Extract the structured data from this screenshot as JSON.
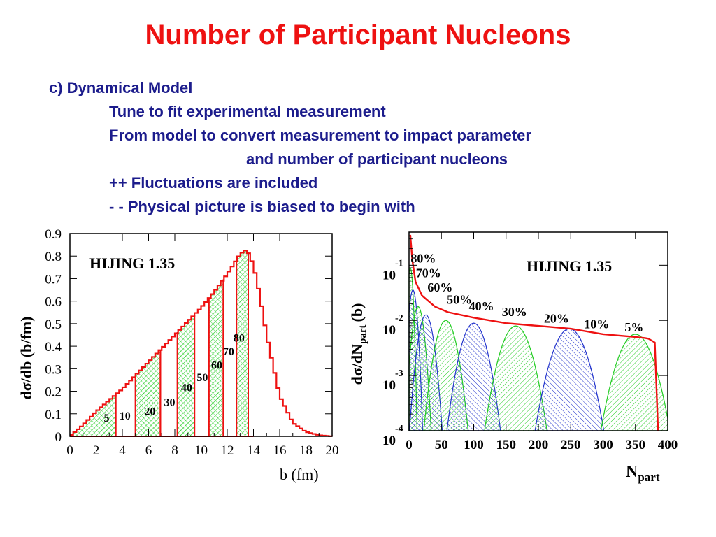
{
  "slide": {
    "title": "Number of Participant Nucleons",
    "lines": [
      "c) Dynamical Model",
      "Tune to fit experimental  measurement",
      "From model to convert measurement to impact parameter",
      "and number of participant nucleons",
      "++ Fluctuations are included",
      "- -  Physical picture is biased to begin with"
    ]
  },
  "colors": {
    "title": "#ee1111",
    "text": "#1c1c8c",
    "histogram": "#ee1111",
    "hatch_green": "#22cc22",
    "hatch_blue": "#2233cc"
  },
  "chart_data": [
    {
      "type": "area",
      "annotation": "HIJING 1.35",
      "xlabel": "b (fm)",
      "ylabel": "dσ/db (b/fm)",
      "xlim": [
        0,
        20
      ],
      "ylim": [
        0,
        0.9
      ],
      "xticks": [
        "0",
        "2",
        "4",
        "6",
        "8",
        "10",
        "12",
        "14",
        "16",
        "18",
        "20"
      ],
      "yticks": [
        "0",
        "0.1",
        "0.2",
        "0.3",
        "0.4",
        "0.5",
        "0.6",
        "0.7",
        "0.8",
        "0.9"
      ],
      "x": [
        0,
        1,
        2,
        3,
        4,
        5,
        6,
        7,
        8,
        9,
        10,
        11,
        12,
        13,
        13.5,
        14,
        14.5,
        15,
        16,
        17,
        18,
        19,
        20
      ],
      "y": [
        0,
        0.05,
        0.11,
        0.16,
        0.21,
        0.27,
        0.33,
        0.39,
        0.45,
        0.51,
        0.57,
        0.64,
        0.72,
        0.81,
        0.83,
        0.76,
        0.62,
        0.45,
        0.18,
        0.06,
        0.02,
        0.005,
        0
      ],
      "bands": [
        {
          "label": "5",
          "x": [
            0,
            3.5
          ]
        },
        {
          "label": "10",
          "x": [
            3.5,
            5
          ]
        },
        {
          "label": "20",
          "x": [
            5,
            6.9
          ]
        },
        {
          "label": "30",
          "x": [
            6.9,
            8.2
          ]
        },
        {
          "label": "40",
          "x": [
            8.2,
            9.5
          ]
        },
        {
          "label": "50",
          "x": [
            9.5,
            10.6
          ]
        },
        {
          "label": "60",
          "x": [
            10.6,
            11.7
          ]
        },
        {
          "label": "70",
          "x": [
            11.7,
            12.7
          ]
        },
        {
          "label": "80",
          "x": [
            12.7,
            13.6
          ]
        }
      ],
      "band_labels": [
        {
          "text": "5",
          "x": 2.8,
          "y": 0.065
        },
        {
          "text": "10",
          "x": 4.2,
          "y": 0.075
        },
        {
          "text": "20",
          "x": 6.1,
          "y": 0.095
        },
        {
          "text": "30",
          "x": 7.6,
          "y": 0.135
        },
        {
          "text": "40",
          "x": 8.9,
          "y": 0.2
        },
        {
          "text": "50",
          "x": 10.1,
          "y": 0.245
        },
        {
          "text": "60",
          "x": 11.2,
          "y": 0.3
        },
        {
          "text": "70",
          "x": 12.1,
          "y": 0.36
        },
        {
          "text": "80",
          "x": 12.9,
          "y": 0.42
        }
      ]
    },
    {
      "type": "area",
      "annotation": "HIJING 1.35",
      "xlabel": "N",
      "xlabel_sub": "part",
      "ylabel": "dσ/dN",
      "ylabel_sub": "part",
      "ylabel_unit": "(b)",
      "xlim": [
        0,
        400
      ],
      "ylim_log10": [
        -4,
        -0.4
      ],
      "log_scale_y": true,
      "xticks": [
        "0",
        "50",
        "100",
        "150",
        "200",
        "250",
        "300",
        "350",
        "400"
      ],
      "yticks": [
        {
          "base": "10",
          "exp": "-1",
          "value": -1
        },
        {
          "base": "10",
          "exp": "-2",
          "value": -2
        },
        {
          "base": "10",
          "exp": "-3",
          "value": -3
        },
        {
          "base": "10",
          "exp": "-4",
          "value": -4
        }
      ],
      "total": {
        "x": [
          2,
          5,
          10,
          20,
          40,
          60,
          100,
          150,
          200,
          250,
          300,
          330,
          350,
          365,
          370,
          380,
          385
        ],
        "log10_y": [
          -0.45,
          -0.9,
          -1.3,
          -1.55,
          -1.75,
          -1.85,
          -1.95,
          -2.05,
          -2.1,
          -2.15,
          -2.25,
          -2.28,
          -2.3,
          -2.32,
          -2.33,
          -2.4,
          -4.0
        ]
      },
      "slices": [
        {
          "label": "80%",
          "center": 2,
          "width": 9,
          "log10_peak": -1.05,
          "color": "green"
        },
        {
          "label": "70%",
          "center": 6,
          "width": 14,
          "log10_peak": -1.45,
          "color": "blue"
        },
        {
          "label": "60%",
          "center": 14,
          "width": 20,
          "log10_peak": -1.75,
          "color": "green"
        },
        {
          "label": "50%",
          "center": 26,
          "width": 26,
          "log10_peak": -1.9,
          "color": "blue"
        },
        {
          "label": "40%",
          "center": 57,
          "width": 36,
          "log10_peak": -2.0,
          "color": "green"
        },
        {
          "label": "30%",
          "center": 100,
          "width": 44,
          "log10_peak": -2.05,
          "color": "blue"
        },
        {
          "label": "20%",
          "center": 165,
          "width": 52,
          "log10_peak": -2.1,
          "color": "green"
        },
        {
          "label": "10%",
          "center": 248,
          "width": 58,
          "log10_peak": -2.15,
          "color": "blue"
        },
        {
          "label": "5%",
          "center": 350,
          "width": 60,
          "log10_peak": -2.25,
          "color": "green"
        }
      ],
      "slice_labels": [
        {
          "text": "80%",
          "x": 22,
          "y": -0.95
        },
        {
          "text": "70%",
          "x": 30,
          "y": -1.22
        },
        {
          "text": "60%",
          "x": 48,
          "y": -1.48
        },
        {
          "text": "50%",
          "x": 78,
          "y": -1.7
        },
        {
          "text": "40%",
          "x": 112,
          "y": -1.82
        },
        {
          "text": "30%",
          "x": 163,
          "y": -1.92
        },
        {
          "text": "20%",
          "x": 228,
          "y": -2.04
        },
        {
          "text": "10%",
          "x": 290,
          "y": -2.14
        },
        {
          "text": "5%",
          "x": 348,
          "y": -2.2
        }
      ]
    }
  ]
}
